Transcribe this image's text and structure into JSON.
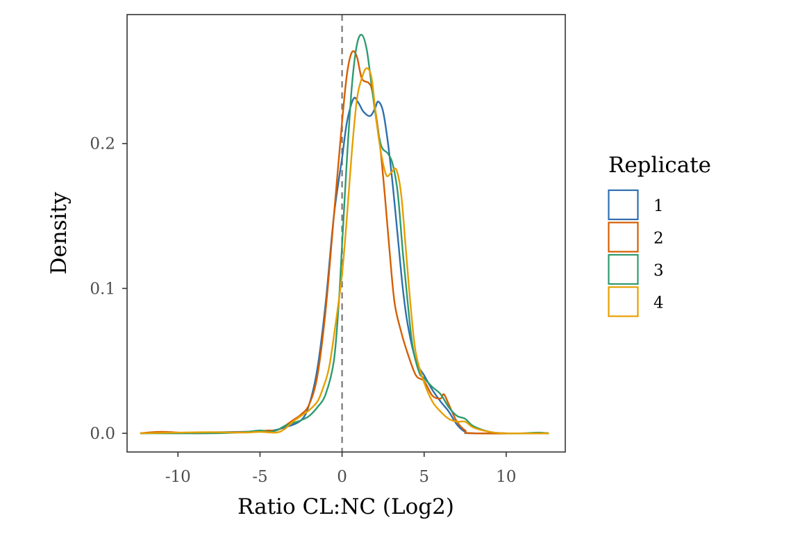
{
  "chart_data": {
    "type": "line",
    "subtype": "density",
    "title": "",
    "xlabel": "Ratio CL:NC (Log2)",
    "ylabel": "Density",
    "xlim": [
      -13.1,
      13.6
    ],
    "ylim": [
      -0.0129,
      0.289
    ],
    "xticks": [
      -10,
      -5,
      0,
      5,
      10
    ],
    "xtick_labels": [
      "-10",
      "-5",
      "0",
      "5",
      "10"
    ],
    "yticks": [
      0.0,
      0.1,
      0.2
    ],
    "ytick_labels": [
      "0.0",
      "0.1",
      "0.2"
    ],
    "reference_line": {
      "x": 0,
      "style": "dashed",
      "color": "#808080"
    },
    "grid": false,
    "legend": {
      "title": "Replicate",
      "position": "right"
    },
    "series": [
      {
        "name": "1",
        "color": "#2E6FAD",
        "points": [
          [
            -12.3,
            0.0
          ],
          [
            -9,
            0.0005
          ],
          [
            -6,
            0.001
          ],
          [
            -4.5,
            0.0015
          ],
          [
            -3.5,
            0.004
          ],
          [
            -2.5,
            0.009
          ],
          [
            -2,
            0.02
          ],
          [
            -1.5,
            0.045
          ],
          [
            -1,
            0.09
          ],
          [
            -0.5,
            0.15
          ],
          [
            0,
            0.19
          ],
          [
            0.3,
            0.215
          ],
          [
            0.7,
            0.231
          ],
          [
            1.0,
            0.228
          ],
          [
            1.3,
            0.222
          ],
          [
            1.7,
            0.219
          ],
          [
            2.0,
            0.224
          ],
          [
            2.2,
            0.229
          ],
          [
            2.5,
            0.222
          ],
          [
            2.8,
            0.2
          ],
          [
            3.1,
            0.17
          ],
          [
            3.4,
            0.135
          ],
          [
            3.7,
            0.1
          ],
          [
            4.0,
            0.075
          ],
          [
            4.5,
            0.05
          ],
          [
            5,
            0.04
          ],
          [
            5.5,
            0.03
          ],
          [
            6,
            0.022
          ],
          [
            6.5,
            0.015
          ],
          [
            7,
            0.006
          ],
          [
            7.5,
            0.001
          ],
          [
            8,
            0.0
          ],
          [
            12.6,
            0.0
          ]
        ]
      },
      {
        "name": "2",
        "color": "#D55E00",
        "points": [
          [
            -12.3,
            0.0
          ],
          [
            -11,
            0.001
          ],
          [
            -9,
            0.0
          ],
          [
            -7,
            0.0005
          ],
          [
            -5,
            0.0015
          ],
          [
            -4.5,
            0.002
          ],
          [
            -4,
            0.002
          ],
          [
            -3.5,
            0.005
          ],
          [
            -3,
            0.009
          ],
          [
            -2.5,
            0.013
          ],
          [
            -2,
            0.02
          ],
          [
            -1.5,
            0.04
          ],
          [
            -1,
            0.085
          ],
          [
            -0.5,
            0.15
          ],
          [
            0,
            0.215
          ],
          [
            0.3,
            0.248
          ],
          [
            0.6,
            0.263
          ],
          [
            0.9,
            0.26
          ],
          [
            1.2,
            0.245
          ],
          [
            1.6,
            0.242
          ],
          [
            1.8,
            0.238
          ],
          [
            2.0,
            0.225
          ],
          [
            2.3,
            0.2
          ],
          [
            2.6,
            0.165
          ],
          [
            2.9,
            0.125
          ],
          [
            3.2,
            0.09
          ],
          [
            3.6,
            0.07
          ],
          [
            4,
            0.055
          ],
          [
            4.5,
            0.04
          ],
          [
            5,
            0.036
          ],
          [
            5.5,
            0.026
          ],
          [
            6,
            0.024
          ],
          [
            6.2,
            0.027
          ],
          [
            6.5,
            0.02
          ],
          [
            7,
            0.008
          ],
          [
            7.5,
            0.002
          ],
          [
            8,
            0.0
          ],
          [
            12.6,
            0.0
          ]
        ]
      },
      {
        "name": "3",
        "color": "#2E9A6E",
        "points": [
          [
            -12.3,
            0.0
          ],
          [
            -8,
            0.0
          ],
          [
            -6,
            0.0008
          ],
          [
            -5,
            0.002
          ],
          [
            -4.5,
            0.001
          ],
          [
            -4,
            0.002
          ],
          [
            -3.5,
            0.005
          ],
          [
            -3,
            0.007
          ],
          [
            -2.5,
            0.009
          ],
          [
            -2,
            0.012
          ],
          [
            -1.5,
            0.018
          ],
          [
            -1,
            0.027
          ],
          [
            -0.5,
            0.05
          ],
          [
            -0.2,
            0.09
          ],
          [
            0,
            0.13
          ],
          [
            0.3,
            0.19
          ],
          [
            0.6,
            0.24
          ],
          [
            0.9,
            0.268
          ],
          [
            1.2,
            0.275
          ],
          [
            1.5,
            0.265
          ],
          [
            1.8,
            0.24
          ],
          [
            2.1,
            0.215
          ],
          [
            2.4,
            0.198
          ],
          [
            2.8,
            0.193
          ],
          [
            3.1,
            0.185
          ],
          [
            3.4,
            0.165
          ],
          [
            3.7,
            0.125
          ],
          [
            4.0,
            0.09
          ],
          [
            4.3,
            0.06
          ],
          [
            4.7,
            0.042
          ],
          [
            5,
            0.038
          ],
          [
            5.5,
            0.032
          ],
          [
            6,
            0.027
          ],
          [
            6.5,
            0.018
          ],
          [
            7,
            0.012
          ],
          [
            7.5,
            0.01
          ],
          [
            8,
            0.005
          ],
          [
            9,
            0.001
          ],
          [
            10,
            0.0
          ],
          [
            11,
            0.0
          ],
          [
            12,
            0.0005
          ],
          [
            12.6,
            0.0
          ]
        ]
      },
      {
        "name": "4",
        "color": "#E69F00",
        "points": [
          [
            -12.3,
            0.0
          ],
          [
            -10,
            0.0005
          ],
          [
            -8,
            0.0008
          ],
          [
            -6,
            0.0005
          ],
          [
            -5,
            0.001
          ],
          [
            -4,
            0.0005
          ],
          [
            -3.5,
            0.003
          ],
          [
            -3,
            0.008
          ],
          [
            -2.5,
            0.012
          ],
          [
            -2,
            0.016
          ],
          [
            -1.5,
            0.022
          ],
          [
            -1.2,
            0.03
          ],
          [
            -0.8,
            0.045
          ],
          [
            -0.4,
            0.075
          ],
          [
            0,
            0.11
          ],
          [
            0.3,
            0.15
          ],
          [
            0.6,
            0.195
          ],
          [
            0.9,
            0.23
          ],
          [
            1.2,
            0.245
          ],
          [
            1.5,
            0.252
          ],
          [
            1.8,
            0.245
          ],
          [
            2.1,
            0.215
          ],
          [
            2.4,
            0.192
          ],
          [
            2.7,
            0.178
          ],
          [
            3,
            0.18
          ],
          [
            3.3,
            0.182
          ],
          [
            3.6,
            0.165
          ],
          [
            3.9,
            0.125
          ],
          [
            4.2,
            0.085
          ],
          [
            4.5,
            0.055
          ],
          [
            5,
            0.035
          ],
          [
            5.5,
            0.022
          ],
          [
            6,
            0.015
          ],
          [
            6.5,
            0.01
          ],
          [
            7,
            0.008
          ],
          [
            7.5,
            0.008
          ],
          [
            8,
            0.004
          ],
          [
            9,
            0.001
          ],
          [
            10,
            0.0
          ],
          [
            12.6,
            0.0
          ]
        ]
      }
    ]
  }
}
